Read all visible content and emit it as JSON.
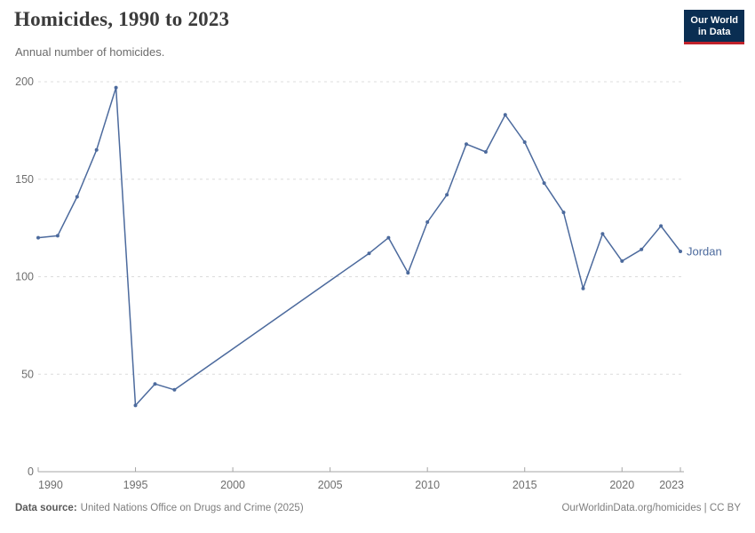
{
  "header": {
    "logo": {
      "line1": "Our World",
      "line2": "in Data",
      "bg_color": "#0A2E52",
      "accent_color": "#C0222B"
    }
  },
  "chart_data": {
    "type": "line",
    "title": "Homicides, 1990 to 2023",
    "subtitle": "Annual number of homicides.",
    "xlabel": "",
    "ylabel": "",
    "xlim": [
      1990,
      2023
    ],
    "ylim": [
      0,
      200
    ],
    "yticks": [
      0,
      50,
      100,
      150,
      200
    ],
    "xticks": [
      1990,
      1995,
      2000,
      2005,
      2010,
      2015,
      2020,
      2023
    ],
    "grid": "horizontal-dashed",
    "legend_position": "end-of-line-label",
    "series": [
      {
        "name": "Jordan",
        "color": "#4C6A9D",
        "points": [
          [
            1990,
            120
          ],
          [
            1991,
            121
          ],
          [
            1992,
            141
          ],
          [
            1993,
            165
          ],
          [
            1994,
            197
          ],
          [
            1995,
            34
          ],
          [
            1996,
            45
          ],
          [
            1997,
            42
          ],
          [
            2007,
            112
          ],
          [
            2008,
            120
          ],
          [
            2009,
            102
          ],
          [
            2010,
            128
          ],
          [
            2011,
            142
          ],
          [
            2012,
            168
          ],
          [
            2013,
            164
          ],
          [
            2014,
            183
          ],
          [
            2015,
            169
          ],
          [
            2016,
            148
          ],
          [
            2017,
            133
          ],
          [
            2018,
            94
          ],
          [
            2019,
            122
          ],
          [
            2020,
            108
          ],
          [
            2021,
            114
          ],
          [
            2022,
            126
          ],
          [
            2023,
            113
          ]
        ]
      }
    ]
  },
  "footer": {
    "source_label": "Data source:",
    "source_text": "United Nations Office on Drugs and Crime (2025)",
    "credit": "OurWorldinData.org/homicides | CC BY"
  }
}
